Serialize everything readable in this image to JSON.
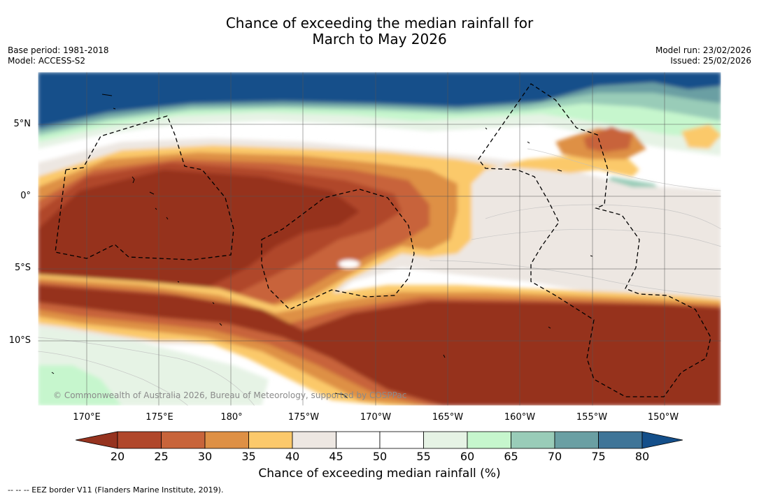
{
  "title_line1": "Chance of exceeding the median rainfall for",
  "title_line2": "March to May 2026",
  "meta_left": {
    "base_period": "Base period: 1981-2018",
    "model": "Model: ACCESS-S2"
  },
  "meta_right": {
    "model_run": "Model run: 23/02/2026",
    "issued": "Issued: 25/02/2026"
  },
  "lon_labels": [
    "170°E",
    "175°E",
    "180°",
    "175°W",
    "170°W",
    "165°W",
    "160°W",
    "155°W",
    "150°W"
  ],
  "lat_labels": [
    "5°N",
    "0°",
    "5°S",
    "10°S"
  ],
  "copyright": "© Commonwealth of Australia 2026, Bureau of Meteorology, supported by COSPPac",
  "colorbar": {
    "ticks": [
      "20",
      "25",
      "30",
      "35",
      "40",
      "45",
      "50",
      "55",
      "60",
      "65",
      "70",
      "75",
      "80"
    ],
    "colors": [
      "#96331f",
      "#b0472b",
      "#c8643a",
      "#de9045",
      "#fbc96b",
      "#ede7e2",
      "#ffffff",
      "#ffffff",
      "#e6f3e5",
      "#c6f6cd",
      "#99ccb8",
      "#6a9fa3",
      "#3f7598",
      "#144f8a"
    ],
    "title": "Chance of exceeding median rainfall (%)"
  },
  "footer": "--  --  -- EEZ border V11 (Flanders Marine Institute, 2019)."
}
